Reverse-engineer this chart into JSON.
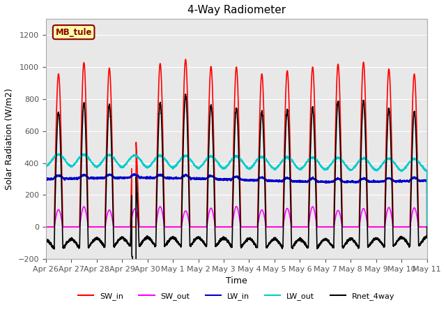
{
  "title": "4-Way Radiometer",
  "xlabel": "Time",
  "ylabel": "Solar Radiation (W/m2)",
  "ylim": [
    -200,
    1300
  ],
  "yticks": [
    -200,
    0,
    200,
    400,
    600,
    800,
    1000,
    1200
  ],
  "fig_bg_color": "#ffffff",
  "plot_bg_color": "#e8e8e8",
  "station_label": "MB_tule",
  "station_label_color": "#8B0000",
  "station_label_bg": "#ffffaa",
  "line_colors": {
    "SW_in": "#ff0000",
    "SW_out": "#ff00ff",
    "LW_in": "#0000cc",
    "LW_out": "#00cccc",
    "Rnet_4way": "#000000"
  },
  "x_tick_labels": [
    "Apr 26",
    "Apr 27",
    "Apr 28",
    "Apr 29",
    "Apr 30",
    "May 1",
    "May 2",
    "May 3",
    "May 4",
    "May 5",
    "May 6",
    "May 7",
    "May 8",
    "May 9",
    "May 10",
    "May 11"
  ],
  "num_days": 15,
  "pts_per_day": 288
}
